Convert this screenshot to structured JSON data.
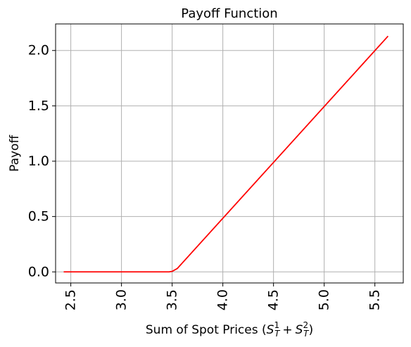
{
  "chart_data": {
    "type": "line",
    "title": "Payoff Function",
    "xlabel": "Sum of Spot Prices ",
    "xlabel_math": {
      "open": "(",
      "s1": "S",
      "sup1": "1",
      "sub1": "T",
      "plus": "+",
      "s2": "S",
      "sup2": "2",
      "sub2": "T",
      "close": ")"
    },
    "ylabel": "Payoff",
    "xlim": [
      2.35,
      5.78
    ],
    "ylim": [
      -0.1,
      2.24
    ],
    "xticks": [
      2.5,
      3.0,
      3.5,
      4.0,
      4.5,
      5.0,
      5.5
    ],
    "xtick_labels": [
      "2.5",
      "3.0",
      "3.5",
      "4.0",
      "4.5",
      "5.0",
      "5.5"
    ],
    "yticks": [
      0.0,
      0.5,
      1.0,
      1.5,
      2.0
    ],
    "ytick_labels": [
      "0.0",
      "0.5",
      "1.0",
      "1.5",
      "2.0"
    ],
    "xtick_rotation": "vertical",
    "grid": true,
    "legend": "none",
    "series": [
      {
        "color": "#ff0000",
        "x": [
          2.43,
          3.47,
          3.5,
          3.55,
          5.63
        ],
        "y": [
          0.0,
          0.0,
          0.005,
          0.03,
          2.13
        ]
      }
    ]
  }
}
